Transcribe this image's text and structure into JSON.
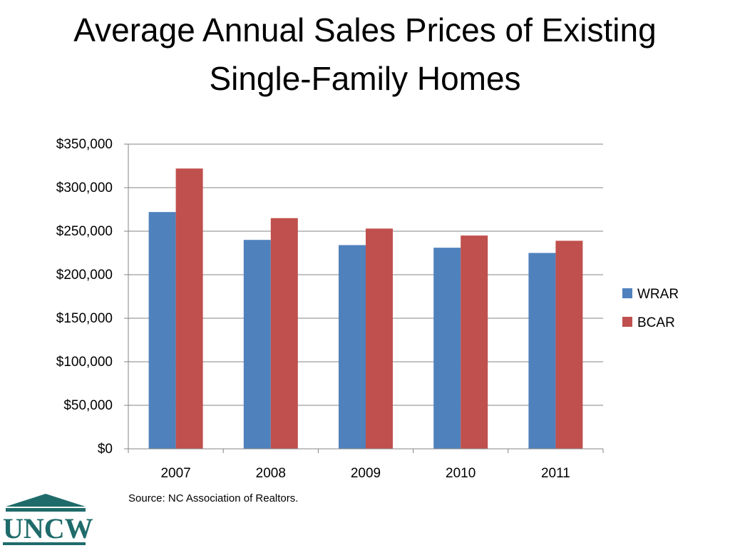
{
  "slide": {
    "title_line1": "Average Annual Sales Prices of Existing",
    "title_line2": "Single-Family Homes",
    "source": "Source:  NC Association of Realtors."
  },
  "logo": {
    "text": "UNCW",
    "color": "#1f6b6b"
  },
  "chart_data": {
    "type": "bar",
    "categories": [
      "2007",
      "2008",
      "2009",
      "2010",
      "2011"
    ],
    "series": [
      {
        "name": "WRAR",
        "color": "#4f81bd",
        "values": [
          272000,
          240000,
          234000,
          231000,
          225000
        ]
      },
      {
        "name": "BCAR",
        "color": "#c0504d",
        "values": [
          322000,
          265000,
          253000,
          245000,
          239000
        ]
      }
    ],
    "ylim": [
      0,
      350000
    ],
    "yticks": [
      0,
      50000,
      100000,
      150000,
      200000,
      250000,
      300000,
      350000
    ],
    "ytick_labels": [
      "$0",
      "$50,000",
      "$100,000",
      "$150,000",
      "$200,000",
      "$250,000",
      "$300,000",
      "$350,000"
    ],
    "grid": true,
    "legend_position": "right"
  }
}
